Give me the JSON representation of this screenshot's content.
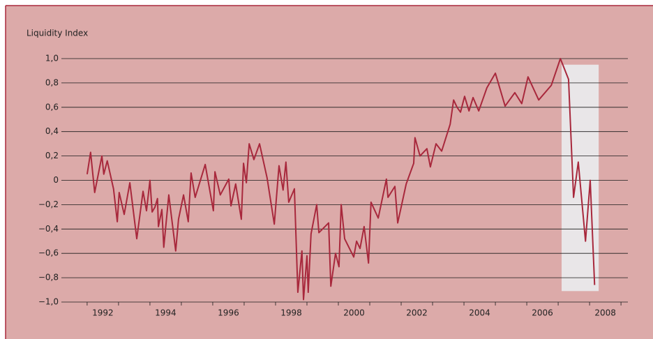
{
  "chart_data": {
    "type": "line",
    "y_label": "Liquidity Index",
    "color": "#a8283c",
    "x": [
      1992.0,
      1992.11,
      1992.24,
      1992.47,
      1992.53,
      1992.64,
      1992.84,
      1992.96,
      1993.02,
      1993.18,
      1993.36,
      1993.58,
      1993.78,
      1993.89,
      1994.0,
      1994.07,
      1994.16,
      1994.24,
      1994.27,
      1994.38,
      1994.44,
      1994.6,
      1994.82,
      1994.91,
      1995.07,
      1995.22,
      1995.31,
      1995.44,
      1995.76,
      1996.02,
      1996.07,
      1996.24,
      1996.51,
      1996.58,
      1996.73,
      1996.91,
      1996.98,
      1997.07,
      1997.16,
      1997.31,
      1997.49,
      1997.73,
      1997.96,
      1998.11,
      1998.24,
      1998.33,
      1998.42,
      1998.6,
      1998.71,
      1998.84,
      1998.89,
      1999.0,
      1999.04,
      1999.13,
      1999.31,
      1999.38,
      1999.69,
      1999.76,
      1999.91,
      2000.02,
      2000.09,
      2000.2,
      2000.49,
      2000.58,
      2000.69,
      2000.82,
      2000.96,
      2001.04,
      2001.27,
      2001.53,
      2001.58,
      2001.8,
      2001.89,
      2002.16,
      2002.4,
      2002.44,
      2002.6,
      2002.82,
      2002.93,
      2003.11,
      2003.29,
      2003.56,
      2003.67,
      2003.78,
      2003.89,
      2004.02,
      2004.16,
      2004.29,
      2004.47,
      2004.73,
      2005.0,
      2005.31,
      2005.62,
      2005.84,
      2006.04,
      2006.38,
      2006.78,
      2007.07,
      2007.33,
      2007.49,
      2007.64,
      2007.87,
      2008.02,
      2008.16
    ],
    "values": [
      0.05,
      0.23,
      -0.1,
      0.2,
      0.05,
      0.16,
      -0.07,
      -0.34,
      -0.1,
      -0.28,
      -0.02,
      -0.48,
      -0.09,
      -0.25,
      0.0,
      -0.26,
      -0.22,
      -0.15,
      -0.38,
      -0.24,
      -0.55,
      -0.12,
      -0.58,
      -0.32,
      -0.12,
      -0.34,
      0.06,
      -0.14,
      0.13,
      -0.25,
      0.07,
      -0.12,
      0.01,
      -0.21,
      -0.03,
      -0.32,
      0.14,
      -0.02,
      0.3,
      0.17,
      0.3,
      0.02,
      -0.36,
      0.12,
      -0.08,
      0.15,
      -0.18,
      -0.07,
      -0.92,
      -0.58,
      -0.98,
      -0.62,
      -0.92,
      -0.44,
      -0.2,
      -0.43,
      -0.35,
      -0.87,
      -0.6,
      -0.71,
      -0.2,
      -0.48,
      -0.63,
      -0.5,
      -0.56,
      -0.38,
      -0.68,
      -0.18,
      -0.31,
      0.01,
      -0.14,
      -0.05,
      -0.35,
      -0.03,
      0.14,
      0.35,
      0.2,
      0.26,
      0.11,
      0.3,
      0.24,
      0.46,
      0.66,
      0.6,
      0.56,
      0.69,
      0.57,
      0.68,
      0.57,
      0.76,
      0.88,
      0.61,
      0.72,
      0.63,
      0.85,
      0.66,
      0.78,
      1.0,
      0.83,
      -0.14,
      0.15,
      -0.5,
      0.0,
      -0.86
    ],
    "xlim": [
      1991.18,
      2009.22
    ],
    "xticks": [
      {
        "value": 1992.5,
        "label": "1992"
      },
      {
        "value": 1994.5,
        "label": "1994"
      },
      {
        "value": 1996.5,
        "label": "1996"
      },
      {
        "value": 1998.5,
        "label": "1998"
      },
      {
        "value": 2000.5,
        "label": "2000"
      },
      {
        "value": 2002.5,
        "label": "2002"
      },
      {
        "value": 2004.5,
        "label": "2004"
      },
      {
        "value": 2006.5,
        "label": "2006"
      },
      {
        "value": 2008.5,
        "label": "2008"
      }
    ],
    "xminorticks": [
      1992,
      1993,
      1994,
      1995,
      1996,
      1997,
      1998,
      1999,
      2000,
      2001,
      2002,
      2003,
      2004,
      2005,
      2006,
      2007,
      2008,
      2009
    ],
    "ylim": [
      -1.0,
      1.0
    ],
    "yticks": [
      {
        "value": -1.0,
        "label": "−1,0"
      },
      {
        "value": -0.8,
        "label": "−0,8"
      },
      {
        "value": -0.6,
        "label": "−0,6"
      },
      {
        "value": -0.4,
        "label": "−0,4"
      },
      {
        "value": -0.2,
        "label": "−0,2"
      },
      0,
      {
        "value": 0.2,
        "label": "0,2"
      },
      {
        "value": 0.4,
        "label": "0,4"
      },
      {
        "value": 0.6,
        "label": "0,6"
      },
      {
        "value": 0.8,
        "label": "0,8"
      },
      {
        "value": 1.0,
        "label": "1,0"
      }
    ],
    "grid": true,
    "shaded_region": {
      "x": [
        2007.11,
        2008.29
      ],
      "y": [
        -0.91,
        0.95
      ],
      "color": "#e9e6e8"
    }
  }
}
